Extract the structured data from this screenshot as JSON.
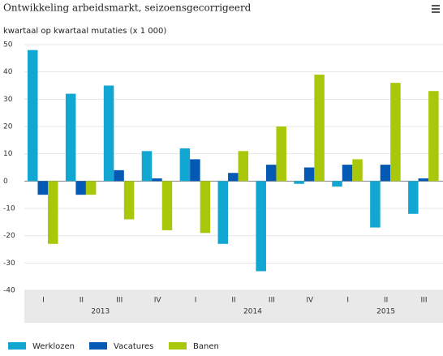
{
  "chart_data": {
    "type": "bar",
    "title": "Ontwikkeling arbeidsmarkt, seizoensgecorrigeerd",
    "subtitle": "kwartaal op kwartaal mutaties (x 1 000)",
    "groups": [
      {
        "name": "2013",
        "categories": [
          "I",
          "II",
          "III",
          "IV"
        ]
      },
      {
        "name": "2014",
        "categories": [
          "I",
          "II",
          "III",
          "IV"
        ]
      },
      {
        "name": "2015",
        "categories": [
          "I",
          "II",
          "III"
        ]
      }
    ],
    "series": [
      {
        "name": "Werklozen",
        "color": "#12a6d2",
        "values": [
          48,
          32,
          35,
          11,
          12,
          -23,
          -33,
          -1,
          -2,
          -17,
          -12
        ]
      },
      {
        "name": "Vacatures",
        "color": "#0459b5",
        "values": [
          -5,
          -5,
          4,
          1,
          8,
          3,
          6,
          5,
          6,
          6,
          1
        ]
      },
      {
        "name": "Banen",
        "color": "#a9c80c",
        "values": [
          -23,
          -5,
          -14,
          -18,
          -19,
          11,
          20,
          39,
          8,
          36,
          33
        ]
      }
    ],
    "ylim": [
      -40,
      50
    ],
    "yticks": [
      -40,
      -30,
      -20,
      -10,
      0,
      10,
      20,
      30,
      40,
      50
    ],
    "grid": true,
    "legend": "bottom"
  }
}
